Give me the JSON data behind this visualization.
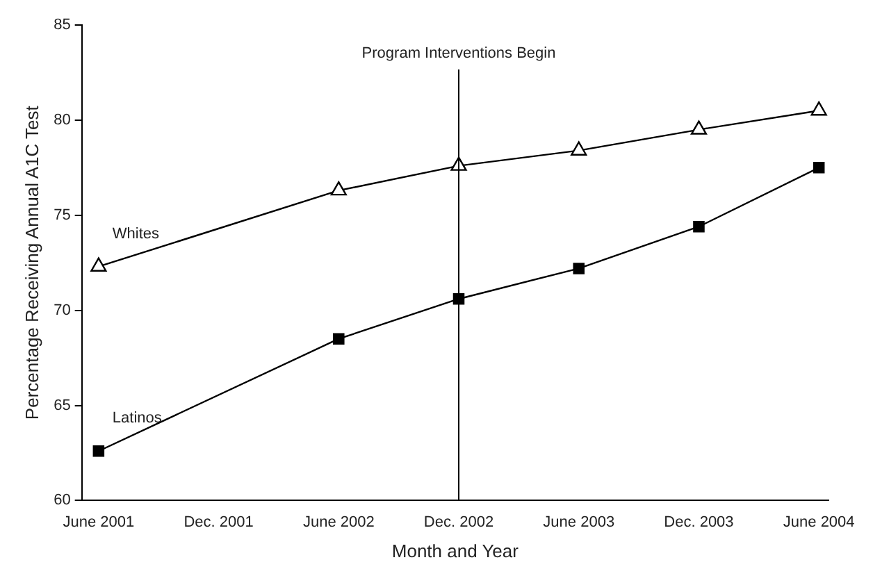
{
  "chart_data": {
    "type": "line",
    "xlabel": "Month and Year",
    "ylabel": "Percentage Receiving Annual A1C Test",
    "categories": [
      "June 2001",
      "Dec. 2001",
      "June 2002",
      "Dec. 2002",
      "June 2003",
      "Dec. 2003",
      "June 2004"
    ],
    "series": [
      {
        "name": "Whites",
        "color": "#000000",
        "marker": "triangle",
        "values": [
          72.3,
          null,
          76.3,
          77.6,
          78.4,
          79.5,
          80.5
        ]
      },
      {
        "name": "Latinos",
        "color": "#000000",
        "marker": "square",
        "values": [
          62.6,
          null,
          68.5,
          70.6,
          72.2,
          74.4,
          77.5
        ]
      }
    ],
    "ylim": [
      60,
      85
    ],
    "yticks": [
      60,
      65,
      70,
      75,
      80,
      85
    ],
    "grid": false,
    "legend": false,
    "line_style": "solid",
    "ref_lines": [
      {
        "axis": "x",
        "value": "Dec. 2002",
        "label": "Program Interventions Begin",
        "color": "#000000"
      }
    ]
  }
}
